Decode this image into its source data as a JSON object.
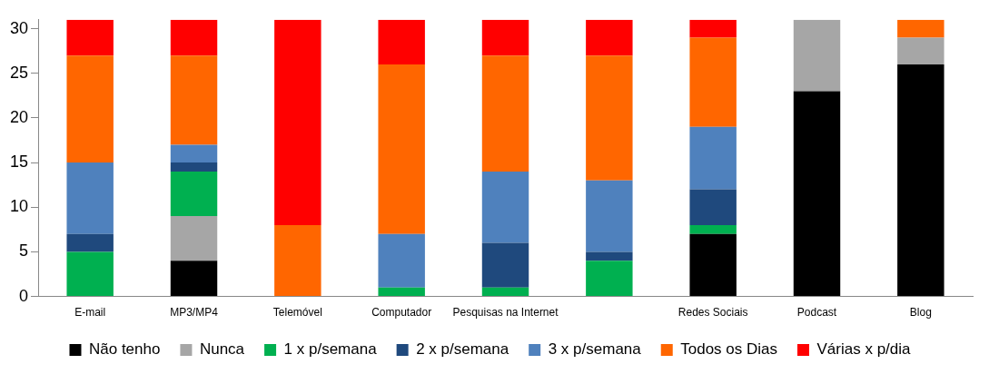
{
  "chart_data": {
    "type": "bar",
    "stacked": true,
    "categories": [
      "E-mail",
      "MP3/MP4",
      "Telemóvel",
      "Computador",
      "Pesquisas na Internet",
      null,
      "Redes Sociais",
      "Podcast",
      "Blog"
    ],
    "series": [
      {
        "name": "Não tenho",
        "color": "#000000",
        "values": [
          0,
          4,
          0,
          0,
          0,
          0,
          7,
          23,
          26
        ]
      },
      {
        "name": "Nunca",
        "color": "#a6a6a6",
        "values": [
          0,
          5,
          0,
          0,
          0,
          0,
          0,
          8,
          3
        ]
      },
      {
        "name": "1 x p/semana",
        "color": "#00b050",
        "values": [
          5,
          5,
          0,
          1,
          1,
          4,
          1,
          0,
          0
        ]
      },
      {
        "name": "2 x p/semana",
        "color": "#1f497d",
        "values": [
          2,
          1,
          0,
          0,
          5,
          1,
          4,
          0,
          0
        ]
      },
      {
        "name": "3 x p/semana",
        "color": "#4f81bd",
        "values": [
          8,
          2,
          0,
          6,
          8,
          8,
          7,
          0,
          0
        ]
      },
      {
        "name": "Todos os Dias",
        "color": "#ff6600",
        "values": [
          12,
          10,
          8,
          19,
          13,
          14,
          10,
          0,
          2
        ]
      },
      {
        "name": "Várias x p/dia",
        "color": "#ff0000",
        "values": [
          4,
          4,
          23,
          5,
          4,
          4,
          2,
          0,
          0
        ]
      }
    ],
    "ylim": [
      0,
      31
    ],
    "yticks": [
      0,
      5,
      10,
      15,
      20,
      25,
      30
    ],
    "grid": false,
    "legend": "bottom"
  }
}
